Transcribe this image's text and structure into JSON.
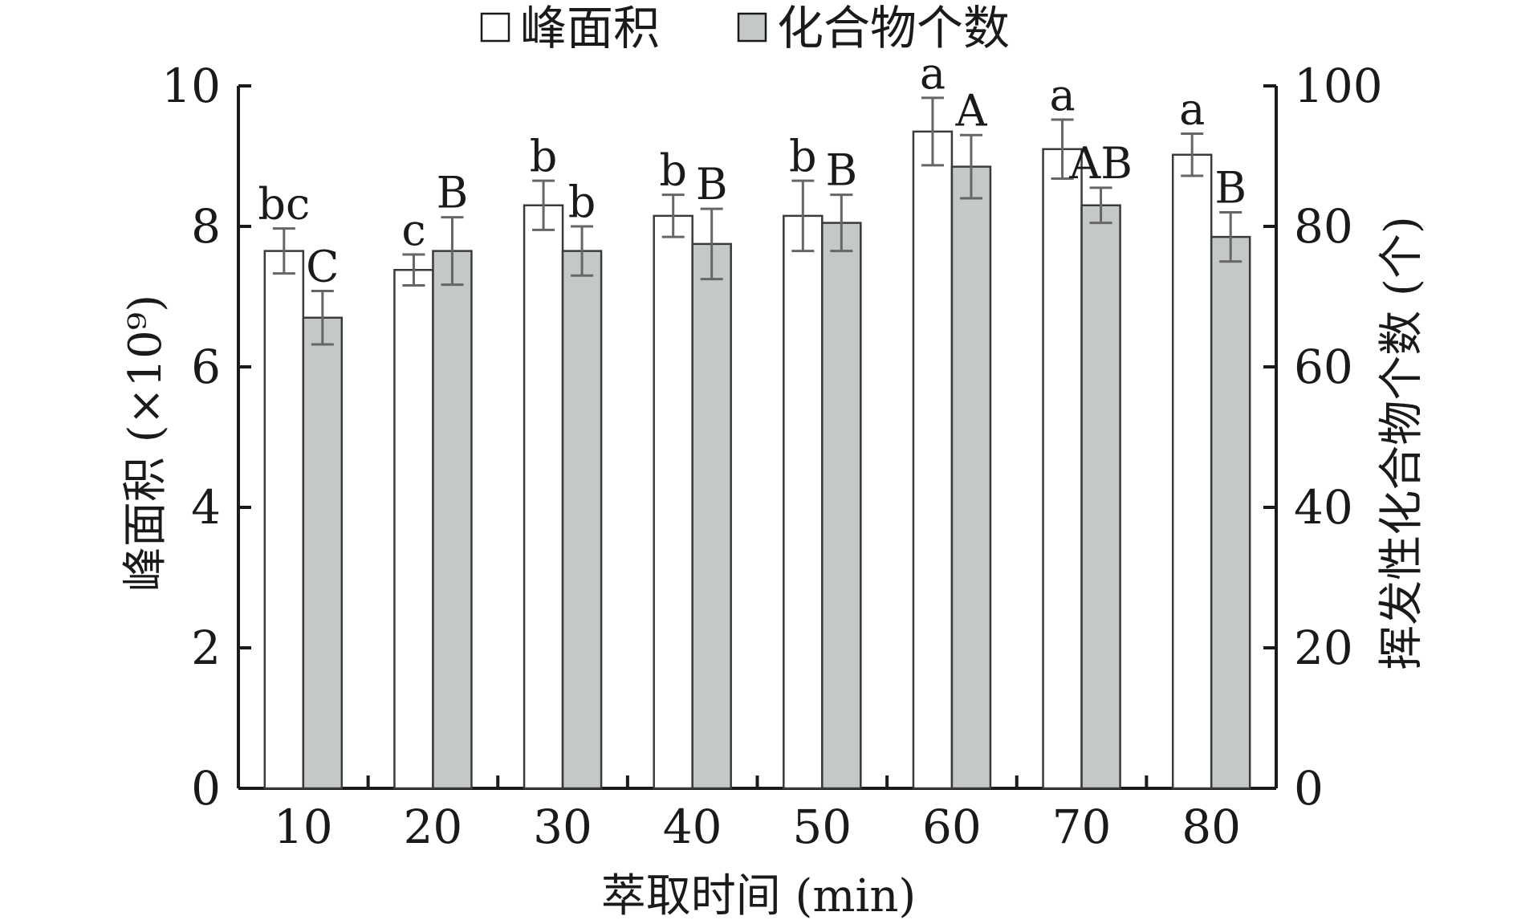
{
  "chart_data": {
    "type": "bar",
    "categories": [
      "10",
      "20",
      "30",
      "40",
      "50",
      "60",
      "70",
      "80"
    ],
    "xlabel": "萃取时间 (min)",
    "ylabel_left": "峰面积 (×10⁹)",
    "ylabel_right": "挥发性化合物个数 (个)",
    "ylim_left": [
      0,
      10
    ],
    "ylim_right": [
      0,
      100
    ],
    "yticks_left": [
      "0",
      "2",
      "4",
      "6",
      "8",
      "10"
    ],
    "yticks_right": [
      "0",
      "20",
      "40",
      "60",
      "80",
      "100"
    ],
    "legend_position": "top",
    "grid": false,
    "series": [
      {
        "name": "峰面积",
        "axis": "left",
        "color": "#ffffff",
        "values": [
          7.65,
          7.38,
          8.3,
          8.15,
          8.15,
          9.35,
          9.1,
          9.02
        ],
        "errors": [
          0.32,
          0.22,
          0.35,
          0.3,
          0.5,
          0.48,
          0.42,
          0.3
        ],
        "labels": [
          "bc",
          "c",
          "b",
          "b",
          "b",
          "a",
          "a",
          "a"
        ]
      },
      {
        "name": "化合物个数",
        "axis": "right",
        "color": "#c4c9c6",
        "values": [
          67,
          76.5,
          76.5,
          77.5,
          80.5,
          88.5,
          83,
          78.5
        ],
        "errors": [
          3.8,
          4.8,
          3.5,
          5,
          4,
          4.5,
          2.5,
          3.5
        ],
        "labels": [
          "C",
          "B",
          "b",
          "B",
          "B",
          "A",
          "AB",
          "B"
        ]
      }
    ]
  }
}
